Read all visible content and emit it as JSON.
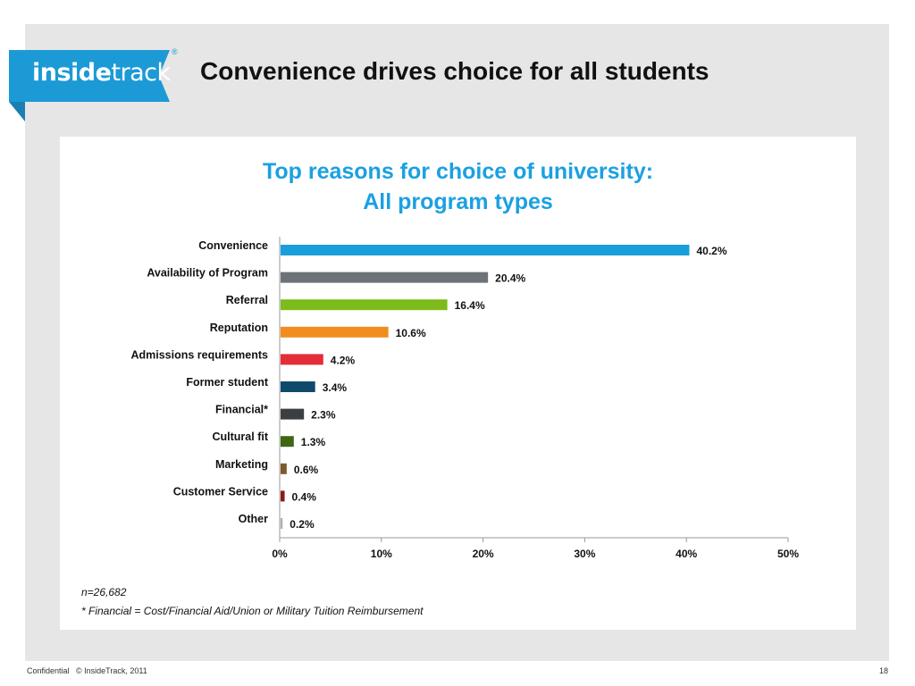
{
  "header": {
    "logo_bold": "inside",
    "logo_light": "track",
    "logo_reg": "®",
    "title": "Convenience drives choice for all students"
  },
  "colors": {
    "brand": "#1b9ad6",
    "chart_title": "#1ba0e2",
    "background": "#e6e6e6"
  },
  "chart_data": {
    "type": "bar",
    "orientation": "horizontal",
    "title_line1": "Top reasons for choice of university:",
    "title_line2": "All program types",
    "categories": [
      "Convenience",
      "Availability of Program",
      "Referral",
      "Reputation",
      "Admissions requirements",
      "Former student",
      "Financial*",
      "Cultural fit",
      "Marketing",
      "Customer Service",
      "Other"
    ],
    "values": [
      40.2,
      20.4,
      16.4,
      10.6,
      4.2,
      3.4,
      2.3,
      1.3,
      0.6,
      0.4,
      0.2
    ],
    "value_labels": [
      "40.2%",
      "20.4%",
      "16.4%",
      "10.6%",
      "4.2%",
      "3.4%",
      "2.3%",
      "1.3%",
      "0.6%",
      "0.4%",
      "0.2%"
    ],
    "bar_colors": [
      "#1a9ed9",
      "#6d7278",
      "#7dbb1c",
      "#f28c1f",
      "#e42d38",
      "#0d4a6b",
      "#3c3f42",
      "#3f6613",
      "#7e5a2a",
      "#8c1b1c",
      "#b0b0b0"
    ],
    "xlim": [
      0,
      50
    ],
    "xticks": [
      0,
      10,
      20,
      30,
      40,
      50
    ],
    "xtick_labels": [
      "0%",
      "10%",
      "20%",
      "30%",
      "40%",
      "50%"
    ],
    "grid": false,
    "legend": "none"
  },
  "notes": {
    "sample": "n=26,682",
    "footnote": "* Financial = Cost/Financial Aid/Union or Military Tuition Reimbursement"
  },
  "footer": {
    "left": "Confidential   © InsideTrack, 2011",
    "page": "18"
  }
}
